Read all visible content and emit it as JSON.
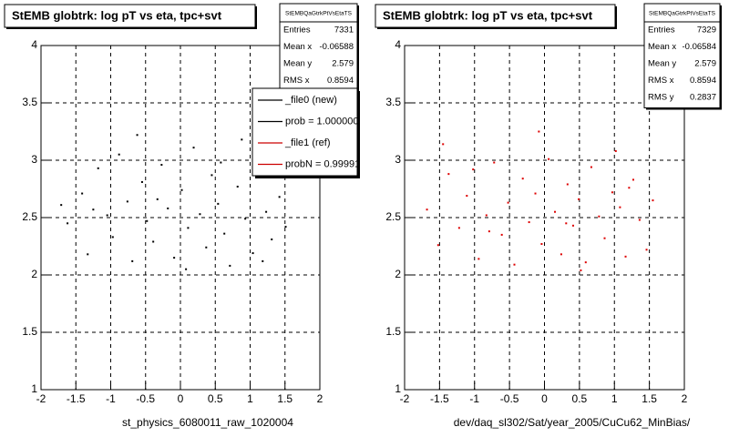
{
  "chart_data": [
    {
      "type": "scatter",
      "title": "StEMB globtrk: log pT vs eta, tpc+svt",
      "xlabel": "st_physics_6080011_raw_1020004",
      "xlim": [
        -2,
        2
      ],
      "ylim": [
        1,
        4
      ],
      "xticks": [
        -2,
        -1.5,
        -1,
        -0.5,
        0,
        0.5,
        1,
        1.5,
        2
      ],
      "yticks": [
        1,
        1.5,
        2,
        2.5,
        3,
        3.5,
        4
      ],
      "grid": true,
      "series": [
        {
          "color": "#000000",
          "x": [
            -1.62,
            -1.41,
            -1.33,
            -1.18,
            -1.05,
            -0.97,
            -0.88,
            -0.76,
            -0.69,
            -0.55,
            -0.48,
            -0.39,
            -0.27,
            -0.18,
            -0.09,
            0.02,
            0.11,
            0.19,
            0.28,
            0.37,
            0.45,
            0.54,
            0.63,
            0.71,
            0.82,
            0.93,
            1.04,
            1.12,
            1.23,
            1.31,
            1.42,
            1.51,
            -1.71,
            -0.62,
            0.08,
            0.58,
            1.18,
            -1.25,
            -0.33,
            0.88
          ],
          "y": [
            2.45,
            2.71,
            2.18,
            2.93,
            2.52,
            2.33,
            3.05,
            2.64,
            2.12,
            2.81,
            2.47,
            2.29,
            2.96,
            2.58,
            2.15,
            2.74,
            2.41,
            3.11,
            2.53,
            2.24,
            2.87,
            2.62,
            2.36,
            2.08,
            2.77,
            2.49,
            2.19,
            2.91,
            2.55,
            2.31,
            2.68,
            2.42,
            2.61,
            3.22,
            2.05,
            2.98,
            2.12,
            2.57,
            2.66,
            3.18
          ]
        }
      ],
      "stats": {
        "title": "StEMBQaGtrkPtVsEtaTS",
        "rows": [
          [
            "Entries",
            7331
          ],
          [
            "Mean x",
            -0.06588
          ],
          [
            "Mean y",
            2.579
          ],
          [
            "RMS x",
            0.8594
          ]
        ]
      },
      "legend": [
        {
          "label": "_file0 (new)",
          "color": "#000000"
        },
        {
          "label": "prob = 1.000000",
          "color": "#000000"
        },
        {
          "label": "_file1 (ref)",
          "color": "#cc0000"
        },
        {
          "label": "probN = 0.99991",
          "color": "#cc0000"
        }
      ]
    },
    {
      "type": "scatter",
      "title": "StEMB globtrk: log pT vs eta, tpc+svt",
      "xlabel": "dev/daq_sl302/Sat/year_2005/CuCu62_MinBias/",
      "xlim": [
        -2,
        2
      ],
      "ylim": [
        1,
        4
      ],
      "xticks": [
        -2,
        -1.5,
        -1,
        -0.5,
        0,
        0.5,
        1,
        1.5,
        2
      ],
      "yticks": [
        1,
        1.5,
        2,
        2.5,
        3,
        3.5,
        4
      ],
      "grid": true,
      "series": [
        {
          "color": "#dd0000",
          "x": [
            -1.68,
            -1.52,
            -1.37,
            -1.22,
            -1.11,
            -0.94,
            -0.83,
            -0.72,
            -0.61,
            -0.52,
            -0.43,
            -0.31,
            -0.22,
            -0.13,
            -0.04,
            0.06,
            0.15,
            0.24,
            0.33,
            0.41,
            0.49,
            0.59,
            0.67,
            0.78,
            0.86,
            0.97,
            1.08,
            1.16,
            1.27,
            1.36,
            1.46,
            1.55,
            -1.45,
            -0.79,
            -0.08,
            0.52,
            1.21,
            -1.02,
            0.31,
            1.02
          ],
          "y": [
            2.57,
            2.26,
            2.88,
            2.41,
            2.69,
            2.14,
            2.52,
            2.98,
            2.35,
            2.63,
            2.09,
            2.84,
            2.46,
            2.71,
            2.27,
            3.01,
            2.55,
            2.18,
            2.79,
            2.43,
            2.66,
            2.11,
            2.94,
            2.51,
            2.32,
            2.72,
            2.59,
            2.16,
            2.83,
            2.48,
            2.22,
            2.65,
            3.14,
            2.38,
            3.25,
            2.04,
            2.76,
            2.92,
            2.45,
            3.08
          ]
        }
      ],
      "stats": {
        "title": "StEMBQaGtrkPtVsEtaTS",
        "rows": [
          [
            "Entries",
            7329
          ],
          [
            "Mean x",
            -0.06584
          ],
          [
            "Mean y",
            2.579
          ],
          [
            "RMS x",
            0.8594
          ],
          [
            "RMS y",
            0.2837
          ]
        ]
      }
    }
  ]
}
